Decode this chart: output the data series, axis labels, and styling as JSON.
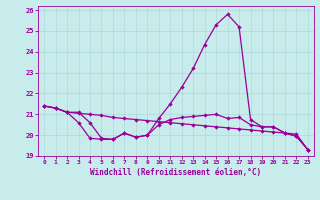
{
  "xlabel": "Windchill (Refroidissement éolien,°C)",
  "bg_color": "#c8ecec",
  "line_color": "#990099",
  "grid_color": "#b0d8d8",
  "xlim": [
    -0.5,
    23.5
  ],
  "ylim": [
    19.0,
    26.2
  ],
  "yticks": [
    19,
    20,
    21,
    22,
    23,
    24,
    25,
    26
  ],
  "xticks": [
    0,
    1,
    2,
    3,
    4,
    5,
    6,
    7,
    8,
    9,
    10,
    11,
    12,
    13,
    14,
    15,
    16,
    17,
    18,
    19,
    20,
    21,
    22,
    23
  ],
  "series1_y": [
    21.4,
    21.3,
    21.1,
    21.1,
    20.6,
    19.85,
    19.8,
    20.1,
    19.9,
    20.0,
    20.8,
    21.5,
    22.3,
    23.2,
    24.35,
    25.3,
    25.8,
    25.2,
    20.75,
    20.4,
    20.4,
    20.1,
    19.95,
    19.3
  ],
  "series2_y": [
    21.4,
    21.3,
    21.1,
    21.05,
    21.0,
    20.95,
    20.85,
    20.8,
    20.75,
    20.7,
    20.65,
    20.6,
    20.55,
    20.5,
    20.45,
    20.4,
    20.35,
    20.3,
    20.25,
    20.2,
    20.15,
    20.1,
    20.05,
    19.3
  ],
  "series3_y": [
    21.4,
    21.3,
    21.1,
    20.6,
    19.85,
    19.8,
    19.8,
    20.1,
    19.9,
    20.0,
    20.5,
    20.75,
    20.85,
    20.9,
    20.95,
    21.0,
    20.8,
    20.85,
    20.5,
    20.4,
    20.4,
    20.1,
    19.95,
    19.3
  ],
  "marker_size": 2.2,
  "line_width": 0.9
}
